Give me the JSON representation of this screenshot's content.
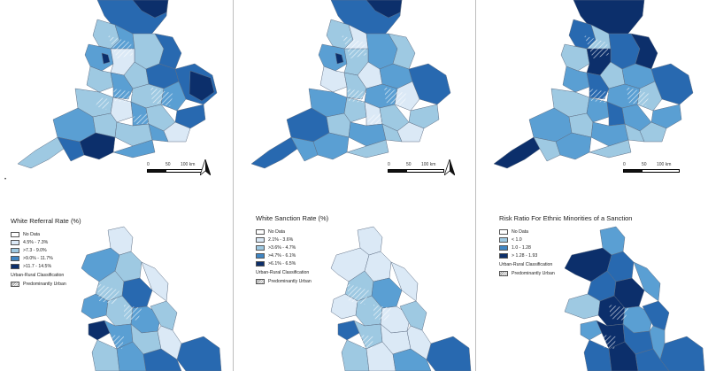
{
  "colors": {
    "no_data": "#ffffff",
    "c1": "#dbe9f6",
    "c2": "#9ec9e2",
    "c3": "#5a9fd3",
    "c4": "#2869b0",
    "c5": "#0c2f6b",
    "border": "#6b7c8f"
  },
  "panels": [
    {
      "id": "white-referral",
      "legend": {
        "title": "White Referral Rate (%)",
        "items": [
          {
            "label": "No Data",
            "color": "#ffffff"
          },
          {
            "label": "4.5% - 7.3%",
            "color": "#dbe9f6"
          },
          {
            "label": ">7.3 - 9.0%",
            "color": "#9ec9e2"
          },
          {
            "label": ">9.0% - 11.7%",
            "color": "#3f86c4"
          },
          {
            "label": ">11.7 - 14.5%",
            "color": "#0c2f6b"
          }
        ],
        "subtitle": "Urban-Rural Classification",
        "hatch_label": "Predominantly Urban"
      },
      "scale": {
        "ticks": [
          "0",
          "50",
          "100 km"
        ]
      }
    },
    {
      "id": "white-sanction",
      "legend": {
        "title": "White Sanction Rate (%)",
        "items": [
          {
            "label": "No Data",
            "color": "#ffffff"
          },
          {
            "label": "2.1% - 3.6%",
            "color": "#dbe9f6"
          },
          {
            "label": ">3.6% - 4.7%",
            "color": "#9ec9e2"
          },
          {
            "label": ">4.7% - 6.1%",
            "color": "#3f86c4"
          },
          {
            "label": ">6.1% - 6.5%",
            "color": "#0c2f6b"
          }
        ],
        "subtitle": "Urban-Rural Classification",
        "hatch_label": "Predominantly Urban"
      },
      "scale": {
        "ticks": [
          "0",
          "50",
          "100 km"
        ]
      }
    },
    {
      "id": "risk-ratio",
      "legend": {
        "title": "Risk Ratio For Ethnic Minorities of a Sanction",
        "items": [
          {
            "label": "No Data",
            "color": "#ffffff"
          },
          {
            "label": "< 1.0",
            "color": "#9ec9e2"
          },
          {
            "label": "1.0 - 1.28",
            "color": "#3f86c4"
          },
          {
            "label": "> 1.28 - 1.93",
            "color": "#0c2f6b"
          }
        ],
        "subtitle": "Urban-Rural Classification",
        "hatch_label": "Predominantly Urban"
      },
      "scale": {
        "ticks": [
          "0",
          "50",
          "100 km"
        ]
      }
    }
  ]
}
